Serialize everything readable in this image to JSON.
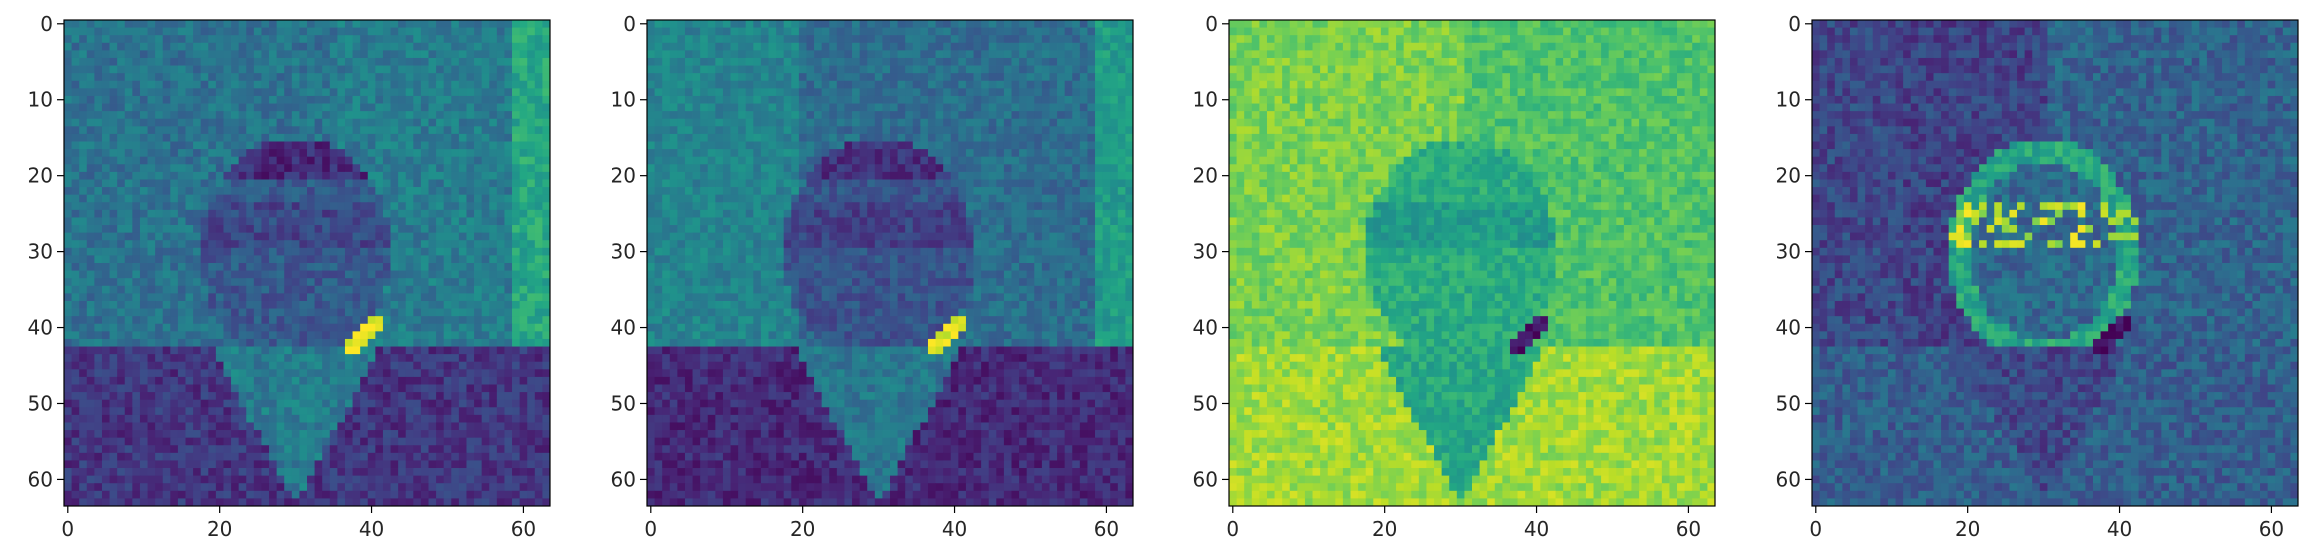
{
  "chart_data": [
    {
      "type": "heatmap",
      "title": "",
      "xlabel": "",
      "ylabel": "",
      "xlim": [
        0,
        63
      ],
      "ylim": [
        63,
        0
      ],
      "xticks": [
        "0",
        "20",
        "40",
        "60"
      ],
      "yticks": [
        "0",
        "10",
        "20",
        "30",
        "40",
        "50",
        "60"
      ],
      "grid_size": [
        64,
        64
      ],
      "colormap": "viridis",
      "content": "feature map 1 of a portrait: bright background, dark suit below row 47, bright spot near (39,41)",
      "variant": 0
    },
    {
      "type": "heatmap",
      "title": "",
      "xlabel": "",
      "ylabel": "",
      "xlim": [
        0,
        63
      ],
      "ylim": [
        63,
        0
      ],
      "xticks": [
        "0",
        "20",
        "40",
        "60"
      ],
      "yticks": [
        "0",
        "10",
        "20",
        "30",
        "40",
        "50",
        "60"
      ],
      "grid_size": [
        64,
        64
      ],
      "colormap": "viridis",
      "content": "feature map 2: similar to map 1, lower overall intensity",
      "variant": 1
    },
    {
      "type": "heatmap",
      "title": "",
      "xlabel": "",
      "ylabel": "",
      "xlim": [
        0,
        63
      ],
      "ylim": [
        63,
        0
      ],
      "xticks": [
        "0",
        "20",
        "40",
        "60"
      ],
      "yticks": [
        "0",
        "10",
        "20",
        "30",
        "40",
        "50",
        "60"
      ],
      "grid_size": [
        64,
        64
      ],
      "colormap": "viridis",
      "content": "feature map 3: inverted, mostly yellow-green, dark spot near (39,41)",
      "variant": 2
    },
    {
      "type": "heatmap",
      "title": "",
      "xlabel": "",
      "ylabel": "",
      "xlim": [
        0,
        63
      ],
      "ylim": [
        63,
        0
      ],
      "xticks": [
        "0",
        "20",
        "40",
        "60"
      ],
      "yticks": [
        "0",
        "10",
        "20",
        "30",
        "40",
        "50",
        "60"
      ],
      "grid_size": [
        64,
        64
      ],
      "colormap": "viridis",
      "content": "feature map 4: edge response, dark background, bright speckles around glasses",
      "variant": 3
    }
  ]
}
